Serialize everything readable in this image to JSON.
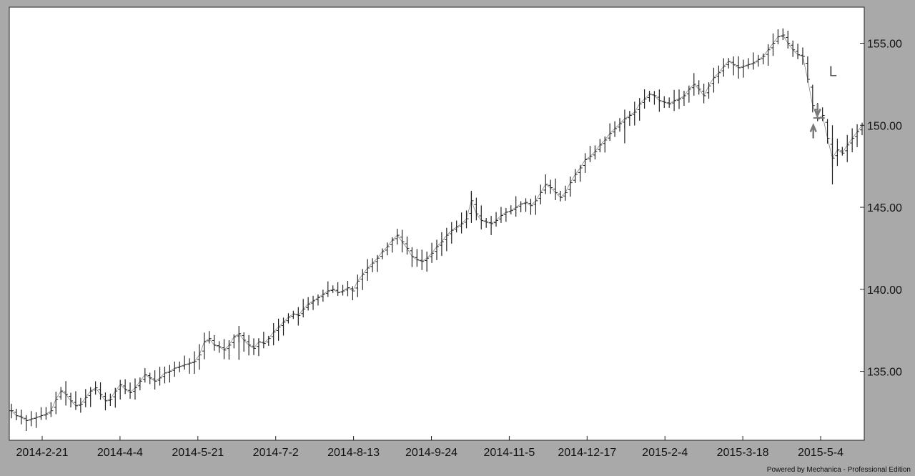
{
  "chart_data": {
    "type": "line",
    "style": "ohlc-bars",
    "title": "",
    "xlabel": "",
    "ylabel": "",
    "x_tick_labels": [
      "2014-2-21",
      "2014-4-4",
      "2014-5-21",
      "2014-7-2",
      "2014-8-13",
      "2014-9-24",
      "2014-11-5",
      "2014-12-17",
      "2015-2-4",
      "2015-3-18",
      "2015-5-4"
    ],
    "y_tick_labels": [
      "155.00",
      "150.00",
      "145.00",
      "140.00",
      "135.00"
    ],
    "y_ticks": [
      155,
      150,
      145,
      140,
      135
    ],
    "ylim": [
      130.8,
      157.2
    ],
    "grid": false,
    "axis_position": "right",
    "series": [
      {
        "closes": [
          132.6,
          132.3,
          132.2,
          132.0,
          132.1,
          132.2,
          132.3,
          132.4,
          132.6,
          133.3,
          133.8,
          133.6,
          133.2,
          132.9,
          133.0,
          133.4,
          133.8,
          134.0,
          133.6,
          133.2,
          133.3,
          133.8,
          134.2,
          133.9,
          133.7,
          134.0,
          134.4,
          134.8,
          134.6,
          134.4,
          134.6,
          134.9,
          135.0,
          135.2,
          135.3,
          135.4,
          135.5,
          135.6,
          136.0,
          136.8,
          137.0,
          136.6,
          136.5,
          136.3,
          136.6,
          137.1,
          137.3,
          136.9,
          136.6,
          136.4,
          136.8,
          136.7,
          137.0,
          137.4,
          137.7,
          138.0,
          138.3,
          138.5,
          138.4,
          138.8,
          139.1,
          139.3,
          139.5,
          139.7,
          139.9,
          140.0,
          139.8,
          139.9,
          140.1,
          139.9,
          140.5,
          140.9,
          141.3,
          141.6,
          141.9,
          142.3,
          142.6,
          143.0,
          143.3,
          142.9,
          142.5,
          142.0,
          141.8,
          141.7,
          141.9,
          142.2,
          142.6,
          142.9,
          143.3,
          143.6,
          143.8,
          144.0,
          144.3,
          145.4,
          144.6,
          144.2,
          144.1,
          144.0,
          144.2,
          144.5,
          144.7,
          144.8,
          145.0,
          145.2,
          145.3,
          145.1,
          145.4,
          145.9,
          146.4,
          146.2,
          145.9,
          145.6,
          145.9,
          146.5,
          147.0,
          147.4,
          147.9,
          148.1,
          148.4,
          148.8,
          149.1,
          149.5,
          149.8,
          150.1,
          150.4,
          150.6,
          150.8,
          151.3,
          151.6,
          151.9,
          151.8,
          151.5,
          151.4,
          151.3,
          151.5,
          151.6,
          151.8,
          152.2,
          152.5,
          152.2,
          151.8,
          152.4,
          152.9,
          153.2,
          153.6,
          153.9,
          153.7,
          153.5,
          153.6,
          153.7,
          153.8,
          154.0,
          154.2,
          154.6,
          155.0,
          155.4,
          155.5,
          155.0,
          154.6,
          154.3,
          154.2,
          152.8,
          151.2,
          150.4,
          150.6,
          149.2,
          148.0,
          148.5,
          148.3,
          148.8,
          149.2,
          149.6,
          150.0
        ],
        "annotations": [
          {
            "label": "L",
            "color": "#555555"
          }
        ]
      }
    ]
  },
  "footer": {
    "credit": "Powered by Mechanica - Professional Edition"
  },
  "colors": {
    "background": "#a9a9a9",
    "plot_area": "#ffffff",
    "bars": "#222222",
    "marker": "#7a7a7a"
  }
}
